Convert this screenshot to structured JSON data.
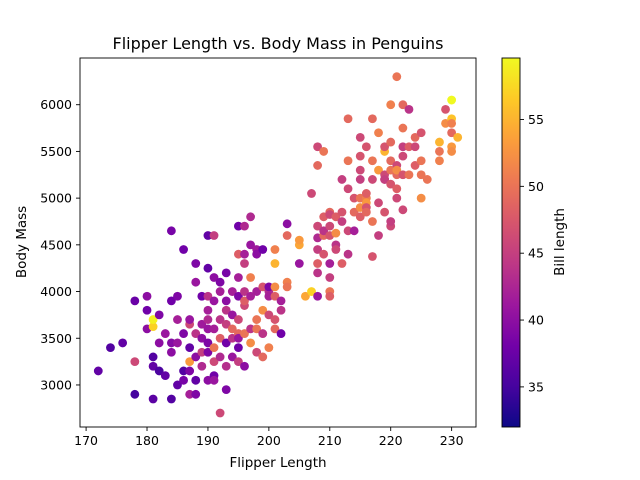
{
  "chart_data": {
    "type": "scatter",
    "title": "Flipper Length vs. Body Mass in Penguins",
    "xlabel": "Flipper Length",
    "ylabel": "Body Mass",
    "colorbar_label": "Bill length",
    "xlim": [
      169,
      234
    ],
    "ylim": [
      2550,
      6500
    ],
    "clim": [
      32,
      59.6
    ],
    "xticks": [
      170,
      180,
      190,
      200,
      210,
      220,
      230
    ],
    "yticks": [
      3000,
      3500,
      4000,
      4500,
      5000,
      5500,
      6000
    ],
    "cticks": [
      35,
      40,
      45,
      50,
      55
    ],
    "colormap": [
      "#0d0887",
      "#46039f",
      "#7201a8",
      "#9c179e",
      "#bd3786",
      "#d8576b",
      "#ed7953",
      "#fb9f3a",
      "#fdca26",
      "#f0f921"
    ],
    "points": [
      [
        172,
        3150,
        37.0
      ],
      [
        174,
        3400,
        36.0
      ],
      [
        176,
        3450,
        37.0
      ],
      [
        178,
        2900,
        35.0
      ],
      [
        178,
        3250,
        46.0
      ],
      [
        178,
        3900,
        37.5
      ],
      [
        180,
        3600,
        40.0
      ],
      [
        180,
        3800,
        38.0
      ],
      [
        180,
        3950,
        40.0
      ],
      [
        181,
        3625,
        57.0
      ],
      [
        181,
        3700,
        59.0
      ],
      [
        181,
        3300,
        36.0
      ],
      [
        181,
        3200,
        37.0
      ],
      [
        181,
        2850,
        36.5
      ],
      [
        182,
        3750,
        39.0
      ],
      [
        182,
        3450,
        40.0
      ],
      [
        182,
        3150,
        35.5
      ],
      [
        183,
        3100,
        37.0
      ],
      [
        183,
        3550,
        41.0
      ],
      [
        184,
        3450,
        39.5
      ],
      [
        184,
        3900,
        38.0
      ],
      [
        184,
        4650,
        38.5
      ],
      [
        184,
        2850,
        36.0
      ],
      [
        184,
        3350,
        40.0
      ],
      [
        185,
        3000,
        37.0
      ],
      [
        185,
        3450,
        41.0
      ],
      [
        185,
        3700,
        42.0
      ],
      [
        185,
        3950,
        39.0
      ],
      [
        186,
        3550,
        39.0
      ],
      [
        186,
        4450,
        38.0
      ],
      [
        186,
        3150,
        36.0
      ],
      [
        186,
        3050,
        38.5
      ],
      [
        187,
        3250,
        53.0
      ],
      [
        187,
        3650,
        46.0
      ],
      [
        187,
        2900,
        42.0
      ],
      [
        187,
        3150,
        39.0
      ],
      [
        187,
        3400,
        37.0
      ],
      [
        187,
        3700,
        41.0
      ],
      [
        188,
        3300,
        40.0
      ],
      [
        188,
        4300,
        39.0
      ],
      [
        188,
        4100,
        41.0
      ],
      [
        188,
        3550,
        44.0
      ],
      [
        188,
        3050,
        37.0
      ],
      [
        188,
        2900,
        39.0
      ],
      [
        189,
        3200,
        43.0
      ],
      [
        189,
        3950,
        38.0
      ],
      [
        189,
        3500,
        40.0
      ],
      [
        189,
        3650,
        41.5
      ],
      [
        189,
        3350,
        45.0
      ],
      [
        190,
        3950,
        44.0
      ],
      [
        190,
        4250,
        37.0
      ],
      [
        190,
        3600,
        41.0
      ],
      [
        190,
        3450,
        39.0
      ],
      [
        190,
        3050,
        40.0
      ],
      [
        190,
        3800,
        42.0
      ],
      [
        190,
        4600,
        37.0
      ],
      [
        190,
        3350,
        39.0
      ],
      [
        190,
        3700,
        43.0
      ],
      [
        191,
        3400,
        50.0
      ],
      [
        191,
        3900,
        41.0
      ],
      [
        191,
        4150,
        40.0
      ],
      [
        191,
        3250,
        46.0
      ],
      [
        191,
        3100,
        38.0
      ],
      [
        191,
        3600,
        42.0
      ],
      [
        191,
        3050,
        41.0
      ],
      [
        191,
        4600,
        45.0
      ],
      [
        192,
        3700,
        44.0
      ],
      [
        192,
        3500,
        48.0
      ],
      [
        192,
        4000,
        42.0
      ],
      [
        192,
        3300,
        43.0
      ],
      [
        192,
        2700,
        46.0
      ],
      [
        192,
        4100,
        39.0
      ],
      [
        193,
        3650,
        45.0
      ],
      [
        193,
        3800,
        44.0
      ],
      [
        193,
        3900,
        40.0
      ],
      [
        193,
        3450,
        38.0
      ],
      [
        193,
        3200,
        43.5
      ],
      [
        193,
        2950,
        39.0
      ],
      [
        193,
        4200,
        38.5
      ],
      [
        194,
        3500,
        44.0
      ],
      [
        194,
        3750,
        41.0
      ],
      [
        194,
        4000,
        42.0
      ],
      [
        194,
        3300,
        41.0
      ],
      [
        194,
        3600,
        49.0
      ],
      [
        195,
        3550,
        49.0
      ],
      [
        195,
        3700,
        46.0
      ],
      [
        195,
        4400,
        48.0
      ],
      [
        195,
        3400,
        38.0
      ],
      [
        195,
        4150,
        42.0
      ],
      [
        195,
        3950,
        39.0
      ],
      [
        195,
        4700,
        38.0
      ],
      [
        195,
        3250,
        45.0
      ],
      [
        195,
        3500,
        41.0
      ],
      [
        196,
        3550,
        50.0
      ],
      [
        196,
        4000,
        44.0
      ],
      [
        196,
        4400,
        42.0
      ],
      [
        196,
        4300,
        45.0
      ],
      [
        196,
        3850,
        46.0
      ],
      [
        196,
        3200,
        40.0
      ],
      [
        196,
        3900,
        48.0
      ],
      [
        196,
        4700,
        43.0
      ],
      [
        197,
        3450,
        52.0
      ],
      [
        197,
        4150,
        51.0
      ],
      [
        197,
        3600,
        44.0
      ],
      [
        197,
        4500,
        41.0
      ],
      [
        197,
        3950,
        42.0
      ],
      [
        197,
        4800,
        43.0
      ],
      [
        198,
        3700,
        50.0
      ],
      [
        198,
        4000,
        42.0
      ],
      [
        198,
        3600,
        50.0
      ],
      [
        198,
        3350,
        46.0
      ],
      [
        198,
        4450,
        41.5
      ],
      [
        198,
        4400,
        40.0
      ],
      [
        199,
        3800,
        52.0
      ],
      [
        199,
        3550,
        44.0
      ],
      [
        199,
        4050,
        47.0
      ],
      [
        199,
        3300,
        49.0
      ],
      [
        199,
        4450,
        38.0
      ],
      [
        200,
        3750,
        46.0
      ],
      [
        200,
        4000,
        43.0
      ],
      [
        200,
        3400,
        51.0
      ],
      [
        200,
        4050,
        39.0
      ],
      [
        200,
        3950,
        42.0
      ],
      [
        201,
        4300,
        55.0
      ],
      [
        201,
        4450,
        51.0
      ],
      [
        201,
        4050,
        52.0
      ],
      [
        201,
        3950,
        48.0
      ],
      [
        201,
        3700,
        47.0
      ],
      [
        201,
        3600,
        49.0
      ],
      [
        202,
        3800,
        44.0
      ],
      [
        202,
        3550,
        38.0
      ],
      [
        202,
        3900,
        42.0
      ],
      [
        203,
        4725,
        40.0
      ],
      [
        203,
        4600,
        49.0
      ],
      [
        203,
        4100,
        51.0
      ],
      [
        203,
        4050,
        50.0
      ],
      [
        205,
        4500,
        54.0
      ],
      [
        205,
        4550,
        53.0
      ],
      [
        205,
        4300,
        41.0
      ],
      [
        206,
        3950,
        54.0
      ],
      [
        207,
        4000,
        57.0
      ],
      [
        207,
        5050,
        46.0
      ],
      [
        208,
        3950,
        41.0
      ],
      [
        208,
        4300,
        48.0
      ],
      [
        208,
        4450,
        45.0
      ],
      [
        208,
        4575,
        43.0
      ],
      [
        208,
        4700,
        46.0
      ],
      [
        208,
        4200,
        44.0
      ],
      [
        208,
        5350,
        49.0
      ],
      [
        208,
        5550,
        46.0
      ],
      [
        209,
        4600,
        49.0
      ],
      [
        209,
        4800,
        48.0
      ],
      [
        209,
        5500,
        50.0
      ],
      [
        209,
        4400,
        47.0
      ],
      [
        209,
        4650,
        44.0
      ],
      [
        210,
        4850,
        49.0
      ],
      [
        210,
        4600,
        47.0
      ],
      [
        210,
        4150,
        45.0
      ],
      [
        210,
        4300,
        42.0
      ],
      [
        210,
        4000,
        50.0
      ],
      [
        210,
        3950,
        48.0
      ],
      [
        210,
        4700,
        46.0
      ],
      [
        210,
        4825,
        46.0
      ],
      [
        211,
        4800,
        48.0
      ],
      [
        211,
        4625,
        52.0
      ],
      [
        211,
        4500,
        44.0
      ],
      [
        211,
        4450,
        46.0
      ],
      [
        212,
        4750,
        45.0
      ],
      [
        212,
        5200,
        45.0
      ],
      [
        212,
        4850,
        47.0
      ],
      [
        212,
        4300,
        48.0
      ],
      [
        213,
        5850,
        49.0
      ],
      [
        213,
        5400,
        50.0
      ],
      [
        213,
        4650,
        46.0
      ],
      [
        213,
        4400,
        44.0
      ],
      [
        213,
        5100,
        46.0
      ],
      [
        214,
        5000,
        47.0
      ],
      [
        214,
        4850,
        49.0
      ],
      [
        214,
        4650,
        42.0
      ],
      [
        215,
        5650,
        46.0
      ],
      [
        215,
        5000,
        50.0
      ],
      [
        215,
        4900,
        52.0
      ],
      [
        215,
        5450,
        47.0
      ],
      [
        215,
        5200,
        45.0
      ],
      [
        215,
        5300,
        46.0
      ],
      [
        215,
        4800,
        48.0
      ],
      [
        216,
        5550,
        47.0
      ],
      [
        216,
        5000,
        51.0
      ],
      [
        216,
        4950,
        53.0
      ],
      [
        216,
        4900,
        47.0
      ],
      [
        216,
        4850,
        49.0
      ],
      [
        216,
        5050,
        48.0
      ],
      [
        217,
        5850,
        49.0
      ],
      [
        217,
        5400,
        50.0
      ],
      [
        217,
        5200,
        46.0
      ],
      [
        217,
        4375,
        47.0
      ],
      [
        217,
        4750,
        50.0
      ],
      [
        218,
        5700,
        51.0
      ],
      [
        218,
        5300,
        53.0
      ],
      [
        218,
        4950,
        46.0
      ],
      [
        218,
        4600,
        45.0
      ],
      [
        219,
        5250,
        46.0
      ],
      [
        219,
        5500,
        55.0
      ],
      [
        219,
        4850,
        47.0
      ],
      [
        219,
        5200,
        47.0
      ],
      [
        219,
        5550,
        47.0
      ],
      [
        219,
        5200,
        45.0
      ],
      [
        220,
        5400,
        49.0
      ],
      [
        220,
        6000,
        51.0
      ],
      [
        220,
        5300,
        50.0
      ],
      [
        220,
        5150,
        47.0
      ],
      [
        220,
        4700,
        46.0
      ],
      [
        220,
        5600,
        49.0
      ],
      [
        220,
        4750,
        45.0
      ],
      [
        221,
        5100,
        48.0
      ],
      [
        221,
        5350,
        46.0
      ],
      [
        221,
        6300,
        50.0
      ],
      [
        221,
        5000,
        46.0
      ],
      [
        221,
        5250,
        49.0
      ],
      [
        221,
        5300,
        52.0
      ],
      [
        222,
        6000,
        49.0
      ],
      [
        222,
        5750,
        50.0
      ],
      [
        222,
        5450,
        46.0
      ],
      [
        222,
        5250,
        47.0
      ],
      [
        222,
        4875,
        46.0
      ],
      [
        222,
        5550,
        45.0
      ],
      [
        223,
        5950,
        44.0
      ],
      [
        223,
        5550,
        48.0
      ],
      [
        223,
        5250,
        50.0
      ],
      [
        224,
        5650,
        49.0
      ],
      [
        224,
        5350,
        48.0
      ],
      [
        224,
        5550,
        46.0
      ],
      [
        225,
        5400,
        50.0
      ],
      [
        225,
        5700,
        47.0
      ],
      [
        225,
        5000,
        52.0
      ],
      [
        225,
        5250,
        50.0
      ],
      [
        226,
        5200,
        50.0
      ],
      [
        228,
        5400,
        51.0
      ],
      [
        228,
        5500,
        50.0
      ],
      [
        228,
        5600,
        55.0
      ],
      [
        229,
        5950,
        47.0
      ],
      [
        229,
        5800,
        52.0
      ],
      [
        230,
        6050,
        59.6
      ],
      [
        230,
        5850,
        56.0
      ],
      [
        230,
        5700,
        49.0
      ],
      [
        230,
        5800,
        51.0
      ],
      [
        230,
        5550,
        53.0
      ],
      [
        230,
        5500,
        52.0
      ],
      [
        231,
        5650,
        55.0
      ]
    ]
  }
}
